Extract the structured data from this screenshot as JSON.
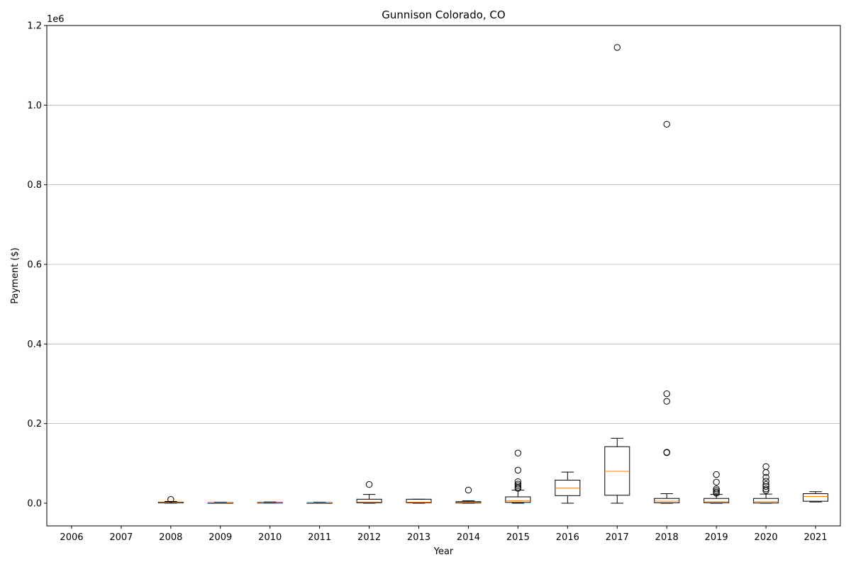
{
  "chart_data": {
    "type": "box",
    "title": "Gunnison Colorado, CO",
    "xlabel": "Year",
    "ylabel": "Payment ($)",
    "y_offset_label": "1e6",
    "ylim": [
      -57000,
      1200000
    ],
    "y_ticks": [
      0.0,
      0.2,
      0.4,
      0.6,
      0.8,
      1.0,
      1.2
    ],
    "y_scale": 1000000,
    "grid": "y",
    "categories": [
      "2006",
      "2007",
      "2008",
      "2009",
      "2010",
      "2011",
      "2012",
      "2013",
      "2014",
      "2015",
      "2016",
      "2017",
      "2018",
      "2019",
      "2020",
      "2021"
    ],
    "boxes": [
      {
        "year": "2006",
        "empty": true
      },
      {
        "year": "2007",
        "empty": true
      },
      {
        "year": "2008",
        "whislo": 0,
        "q1": 500,
        "med": 1200,
        "q3": 2500,
        "whishi": 4500,
        "fliers": [
          9500
        ]
      },
      {
        "year": "2009",
        "whislo": 0,
        "q1": 200,
        "med": 800,
        "q3": 1500,
        "whishi": 2500,
        "fliers": []
      },
      {
        "year": "2010",
        "whislo": 0,
        "q1": 300,
        "med": 1000,
        "q3": 2000,
        "whishi": 3000,
        "fliers": []
      },
      {
        "year": "2011",
        "whislo": 0,
        "q1": 200,
        "med": 800,
        "q3": 1500,
        "whishi": 2500,
        "fliers": []
      },
      {
        "year": "2012",
        "whislo": 0,
        "q1": 1000,
        "med": 3000,
        "q3": 10000,
        "whishi": 22000,
        "fliers": [
          47000
        ]
      },
      {
        "year": "2013",
        "whislo": 0,
        "q1": 1000,
        "med": 2500,
        "q3": 10000,
        "whishi": 10000,
        "fliers": []
      },
      {
        "year": "2014",
        "whislo": 0,
        "q1": 500,
        "med": 2000,
        "q3": 4000,
        "whishi": 6000,
        "fliers": [
          33000
        ]
      },
      {
        "year": "2015",
        "whislo": 0,
        "q1": 2000,
        "med": 6000,
        "q3": 16000,
        "whishi": 33000,
        "fliers": [
          37000,
          40000,
          44000,
          48000,
          54000,
          83000,
          126000
        ]
      },
      {
        "year": "2016",
        "whislo": 0,
        "q1": 19000,
        "med": 38000,
        "q3": 58000,
        "whishi": 78000,
        "fliers": []
      },
      {
        "year": "2017",
        "whislo": 0,
        "q1": 20000,
        "med": 80000,
        "q3": 142000,
        "whishi": 163000,
        "fliers": [
          1145000
        ]
      },
      {
        "year": "2018",
        "whislo": 0,
        "q1": 1000,
        "med": 5000,
        "q3": 12000,
        "whishi": 24000,
        "fliers": [
          127000,
          128000,
          256000,
          275000,
          952000
        ]
      },
      {
        "year": "2019",
        "whislo": 0,
        "q1": 1000,
        "med": 4000,
        "q3": 12000,
        "whishi": 22000,
        "fliers": [
          25000,
          28000,
          32000,
          36000,
          53000,
          72000
        ]
      },
      {
        "year": "2020",
        "whislo": 0,
        "q1": 500,
        "med": 4000,
        "q3": 12000,
        "whishi": 23000,
        "fliers": [
          32000,
          36000,
          42000,
          47000,
          55000,
          65000,
          77000,
          92000
        ]
      },
      {
        "year": "2021",
        "whislo": 3000,
        "q1": 5000,
        "med": 17000,
        "q3": 24000,
        "whishi": 29000,
        "fliers": []
      }
    ],
    "colors": {
      "box": "#000000",
      "median": "#ff7f0e",
      "grid": "#b0b0b0",
      "flier": "#000000"
    }
  }
}
